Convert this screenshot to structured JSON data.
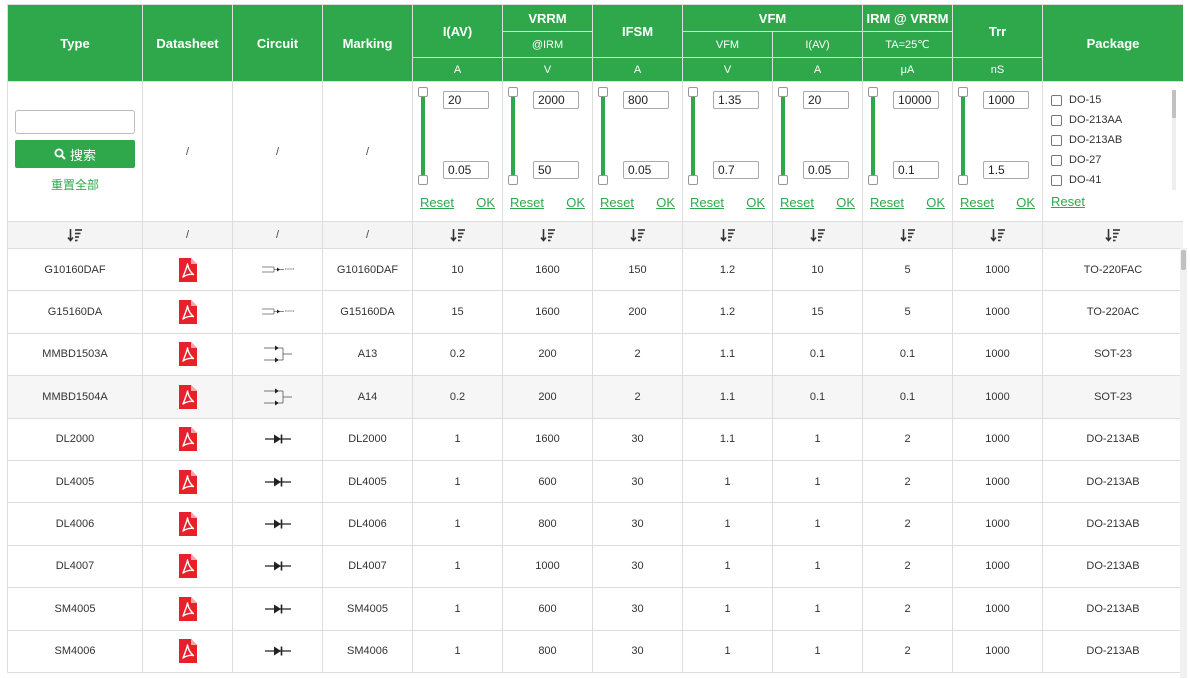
{
  "headers": {
    "type": "Type",
    "datasheet": "Datasheet",
    "circuit": "Circuit",
    "marking": "Marking",
    "iav": "I(AV)",
    "vrrm": "VRRM",
    "vrrm_sub": "@IRM",
    "ifsm": "IFSM",
    "vfm": "VFM",
    "vfm_sub1": "VFM",
    "vfm_sub2": "I(AV)",
    "irm": "IRM @ VRRM",
    "irm_sub": "TA=25℃",
    "trr": "Trr",
    "package": "Package",
    "units": [
      "A",
      "V",
      "A",
      "V",
      "A",
      "μA",
      "nS"
    ]
  },
  "search": {
    "button_label": "搜索",
    "reset_all_label": "重置全部",
    "placeholder": ""
  },
  "filters": [
    {
      "max": "20",
      "min": "0.05"
    },
    {
      "max": "2000",
      "min": "50"
    },
    {
      "max": "800",
      "min": "0.05"
    },
    {
      "max": "1.35",
      "min": "0.7"
    },
    {
      "max": "20",
      "min": "0.05"
    },
    {
      "max": "10000",
      "min": "0.1"
    },
    {
      "max": "1000",
      "min": "1.5"
    }
  ],
  "filter_links": {
    "reset": "Reset",
    "ok": "OK"
  },
  "packages": [
    "DO-15",
    "DO-213AA",
    "DO-213AB",
    "DO-27",
    "DO-41"
  ],
  "package_reset": "Reset",
  "slash": "/",
  "rows": [
    {
      "type": "G10160DAF",
      "marking": "G10160DAF",
      "iav": "10",
      "vrrm": "1600",
      "ifsm": "150",
      "vfm": "1.2",
      "vfm_i": "10",
      "irm": "5",
      "trr": "1000",
      "pkg": "TO-220FAC"
    },
    {
      "type": "G15160DA",
      "marking": "G15160DA",
      "iav": "15",
      "vrrm": "1600",
      "ifsm": "200",
      "vfm": "1.2",
      "vfm_i": "15",
      "irm": "5",
      "trr": "1000",
      "pkg": "TO-220AC"
    },
    {
      "type": "MMBD1503A",
      "marking": "A13",
      "iav": "0.2",
      "vrrm": "200",
      "ifsm": "2",
      "vfm": "1.1",
      "vfm_i": "0.1",
      "irm": "0.1",
      "trr": "1000",
      "pkg": "SOT-23"
    },
    {
      "type": "MMBD1504A",
      "marking": "A14",
      "iav": "0.2",
      "vrrm": "200",
      "ifsm": "2",
      "vfm": "1.1",
      "vfm_i": "0.1",
      "irm": "0.1",
      "trr": "1000",
      "pkg": "SOT-23"
    },
    {
      "type": "DL2000",
      "marking": "DL2000",
      "iav": "1",
      "vrrm": "1600",
      "ifsm": "30",
      "vfm": "1.1",
      "vfm_i": "1",
      "irm": "2",
      "trr": "1000",
      "pkg": "DO-213AB"
    },
    {
      "type": "DL4005",
      "marking": "DL4005",
      "iav": "1",
      "vrrm": "600",
      "ifsm": "30",
      "vfm": "1",
      "vfm_i": "1",
      "irm": "2",
      "trr": "1000",
      "pkg": "DO-213AB"
    },
    {
      "type": "DL4006",
      "marking": "DL4006",
      "iav": "1",
      "vrrm": "800",
      "ifsm": "30",
      "vfm": "1",
      "vfm_i": "1",
      "irm": "2",
      "trr": "1000",
      "pkg": "DO-213AB"
    },
    {
      "type": "DL4007",
      "marking": "DL4007",
      "iav": "1",
      "vrrm": "1000",
      "ifsm": "30",
      "vfm": "1",
      "vfm_i": "1",
      "irm": "2",
      "trr": "1000",
      "pkg": "DO-213AB"
    },
    {
      "type": "SM4005",
      "marking": "SM4005",
      "iav": "1",
      "vrrm": "600",
      "ifsm": "30",
      "vfm": "1",
      "vfm_i": "1",
      "irm": "2",
      "trr": "1000",
      "pkg": "DO-213AB"
    },
    {
      "type": "SM4006",
      "marking": "SM4006",
      "iav": "1",
      "vrrm": "800",
      "ifsm": "30",
      "vfm": "1",
      "vfm_i": "1",
      "irm": "2",
      "trr": "1000",
      "pkg": "DO-213AB"
    }
  ],
  "circuit_icons": [
    "dual-diode-icon",
    "dual-diode-icon",
    "sot23-diode-icon",
    "sot23-diode-icon",
    "diode-icon",
    "diode-icon",
    "diode-icon",
    "diode-icon",
    "diode-icon",
    "diode-icon"
  ],
  "colors": {
    "accent": "#2ea84b",
    "pdf": "#e8202a"
  }
}
